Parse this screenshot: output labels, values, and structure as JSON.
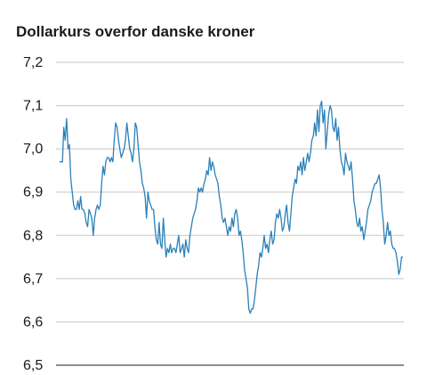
{
  "chart_data": {
    "type": "line",
    "title": "Dollarkurs overfor danske kroner",
    "xlabel": "",
    "ylabel": "",
    "ylim": [
      6.5,
      7.2
    ],
    "yticks": [
      7.2,
      7.1,
      7.0,
      6.9,
      6.8,
      6.7,
      6.6,
      6.5
    ],
    "ytick_labels": [
      "7,2",
      "7,1",
      "7,0",
      "6,9",
      "6,8",
      "6,7",
      "6,6",
      "6,5"
    ],
    "grid": true,
    "line_color": "#2a80b9",
    "series": [
      {
        "values": [
          6.97,
          6.97,
          6.97,
          7.05,
          7.02,
          7.07,
          7.0,
          7.01,
          6.93,
          6.9,
          6.87,
          6.86,
          6.86,
          6.88,
          6.86,
          6.89,
          6.86,
          6.86,
          6.85,
          6.83,
          6.82,
          6.86,
          6.85,
          6.84,
          6.8,
          6.84,
          6.86,
          6.87,
          6.86,
          6.87,
          6.92,
          6.96,
          6.94,
          6.97,
          6.98,
          6.98,
          6.97,
          6.98,
          6.97,
          7.02,
          7.06,
          7.05,
          7.02,
          7.0,
          6.98,
          6.99,
          7.0,
          7.02,
          7.06,
          7.03,
          7.0,
          6.99,
          6.97,
          7.0,
          7.06,
          7.05,
          7.01,
          6.97,
          6.95,
          6.92,
          6.91,
          6.89,
          6.84,
          6.9,
          6.88,
          6.87,
          6.86,
          6.86,
          6.82,
          6.79,
          6.78,
          6.83,
          6.78,
          6.77,
          6.84,
          6.79,
          6.75,
          6.77,
          6.76,
          6.78,
          6.76,
          6.77,
          6.77,
          6.76,
          6.78,
          6.8,
          6.76,
          6.77,
          6.78,
          6.75,
          6.79,
          6.77,
          6.76,
          6.8,
          6.82,
          6.84,
          6.85,
          6.86,
          6.88,
          6.91,
          6.9,
          6.91,
          6.9,
          6.92,
          6.93,
          6.95,
          6.94,
          6.98,
          6.95,
          6.97,
          6.96,
          6.94,
          6.93,
          6.92,
          6.89,
          6.87,
          6.84,
          6.83,
          6.84,
          6.82,
          6.8,
          6.82,
          6.81,
          6.84,
          6.82,
          6.85,
          6.86,
          6.84,
          6.8,
          6.81,
          6.79,
          6.76,
          6.72,
          6.7,
          6.68,
          6.63,
          6.62,
          6.63,
          6.63,
          6.65,
          6.68,
          6.71,
          6.73,
          6.76,
          6.75,
          6.77,
          6.8,
          6.77,
          6.78,
          6.76,
          6.79,
          6.81,
          6.78,
          6.79,
          6.83,
          6.85,
          6.84,
          6.86,
          6.84,
          6.81,
          6.82,
          6.85,
          6.87,
          6.83,
          6.81,
          6.85,
          6.89,
          6.91,
          6.93,
          6.92,
          6.96,
          6.95,
          6.97,
          6.94,
          6.98,
          6.95,
          6.97,
          6.99,
          6.97,
          6.99,
          7.02,
          7.03,
          7.06,
          7.03,
          7.09,
          7.04,
          7.1,
          7.11,
          7.06,
          7.09,
          7.0,
          7.04,
          7.08,
          7.1,
          7.09,
          7.05,
          7.04,
          7.07,
          7.02,
          7.05,
          7.0,
          6.97,
          6.96,
          6.94,
          6.99,
          6.97,
          6.96,
          6.95,
          6.97,
          6.93,
          6.88,
          6.86,
          6.83,
          6.82,
          6.84,
          6.81,
          6.82,
          6.79,
          6.81,
          6.83,
          6.86,
          6.87,
          6.88,
          6.9,
          6.91,
          6.92,
          6.92,
          6.93,
          6.94,
          6.91,
          6.86,
          6.83,
          6.78,
          6.8,
          6.83,
          6.8,
          6.81,
          6.78,
          6.77,
          6.77,
          6.76,
          6.74,
          6.71,
          6.72,
          6.75,
          6.75
        ]
      }
    ]
  }
}
